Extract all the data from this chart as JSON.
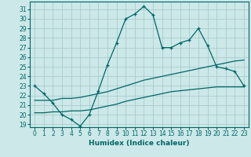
{
  "xlabel": "Humidex (Indice chaleur)",
  "ylabel": "",
  "bg_color": "#cce8e8",
  "grid_color": "#aacccc",
  "line_color": "#006666",
  "xlim": [
    -0.5,
    23.5
  ],
  "ylim": [
    18.7,
    31.8
  ],
  "yticks": [
    19,
    20,
    21,
    22,
    23,
    24,
    25,
    26,
    27,
    28,
    29,
    30,
    31
  ],
  "xticks": [
    0,
    1,
    2,
    3,
    4,
    5,
    6,
    7,
    8,
    9,
    10,
    11,
    12,
    13,
    14,
    15,
    16,
    17,
    18,
    19,
    20,
    21,
    22,
    23
  ],
  "line1_x": [
    0,
    1,
    2,
    3,
    4,
    5,
    6,
    7,
    8,
    9,
    10,
    11,
    12,
    13,
    14,
    15,
    16,
    17,
    18,
    19,
    20,
    21,
    22,
    23
  ],
  "line1_y": [
    23.0,
    22.2,
    21.2,
    20.0,
    19.5,
    18.8,
    20.0,
    22.5,
    25.2,
    27.5,
    30.0,
    30.5,
    31.3,
    30.4,
    27.0,
    27.0,
    27.5,
    27.8,
    29.0,
    27.2,
    25.0,
    24.8,
    24.5,
    23.0
  ],
  "line2_x": [
    0,
    1,
    2,
    3,
    4,
    5,
    6,
    7,
    8,
    9,
    10,
    11,
    12,
    13,
    14,
    15,
    16,
    17,
    18,
    19,
    20,
    21,
    22,
    23
  ],
  "line2_y": [
    21.5,
    21.5,
    21.5,
    21.7,
    21.7,
    21.8,
    22.0,
    22.2,
    22.4,
    22.7,
    23.0,
    23.3,
    23.6,
    23.8,
    24.0,
    24.2,
    24.4,
    24.6,
    24.8,
    25.0,
    25.2,
    25.4,
    25.6,
    25.7
  ],
  "line3_x": [
    0,
    1,
    2,
    3,
    4,
    5,
    6,
    7,
    8,
    9,
    10,
    11,
    12,
    13,
    14,
    15,
    16,
    17,
    18,
    19,
    20,
    21,
    22,
    23
  ],
  "line3_y": [
    20.2,
    20.2,
    20.3,
    20.3,
    20.4,
    20.4,
    20.5,
    20.7,
    20.9,
    21.1,
    21.4,
    21.6,
    21.8,
    22.0,
    22.2,
    22.4,
    22.5,
    22.6,
    22.7,
    22.8,
    22.9,
    22.9,
    22.9,
    22.9
  ]
}
